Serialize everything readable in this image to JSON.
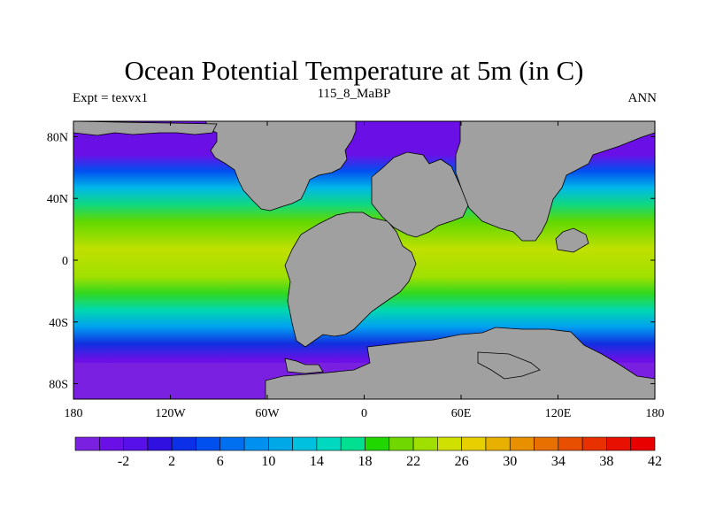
{
  "title": "Ocean Potential Temperature at 5m (in C)",
  "subtitle_left": "Expt = texvx1",
  "subtitle_center": "115_8_MaBP",
  "subtitle_right": "ANN",
  "colors": {
    "land": "#a0a0a0",
    "border": "#000000"
  },
  "map": {
    "lat_labels": [
      "80N",
      "40N",
      "0",
      "40S",
      "80S"
    ],
    "lon_labels": [
      "180",
      "120W",
      "60W",
      "0",
      "60E",
      "120E",
      "180"
    ]
  },
  "colorbar": {
    "labels": [
      "-2",
      "2",
      "6",
      "10",
      "14",
      "18",
      "22",
      "26",
      "30",
      "34",
      "38",
      "42"
    ],
    "colors": [
      "#7a20e0",
      "#6a10e6",
      "#5810ea",
      "#3010e0",
      "#0c30e8",
      "#0050f0",
      "#0070f0",
      "#0090f0",
      "#00a8e8",
      "#00c0e0",
      "#00d8c0",
      "#00e090",
      "#20d800",
      "#70d800",
      "#a0e000",
      "#d0e000",
      "#e8d000",
      "#e8b000",
      "#e89000",
      "#e87000",
      "#e85000",
      "#e83000",
      "#e81000",
      "#e80000"
    ]
  }
}
